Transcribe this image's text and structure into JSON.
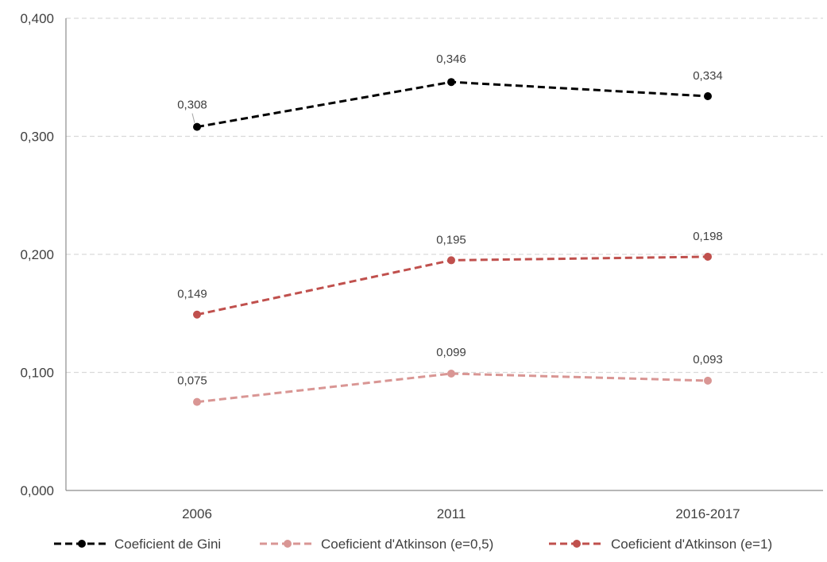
{
  "chart_data": {
    "type": "line",
    "categories": [
      "2006",
      "2011",
      "2016-2017"
    ],
    "ylim": [
      0,
      0.4
    ],
    "yticks": [
      "0,000",
      "0,100",
      "0,200",
      "0,300",
      "0,400"
    ],
    "ytick_values": [
      0,
      0.1,
      0.2,
      0.3,
      0.4
    ],
    "grid": true,
    "legend_position": "bottom",
    "series": [
      {
        "name": "Coeficient de Gini",
        "values": [
          0.308,
          0.346,
          0.334
        ],
        "labels": [
          "0,308",
          "0,346",
          "0,334"
        ],
        "color": "#000000"
      },
      {
        "name": "Coeficient d'Atkinson (e=0,5)",
        "values": [
          0.075,
          0.099,
          0.093
        ],
        "labels": [
          "0,075",
          "0,099",
          "0,093"
        ],
        "color": "#D99694"
      },
      {
        "name": "Coeficient d'Atkinson (e=1)",
        "values": [
          0.149,
          0.195,
          0.198
        ],
        "labels": [
          "0,149",
          "0,195",
          "0,198"
        ],
        "color": "#C0504D"
      }
    ]
  }
}
